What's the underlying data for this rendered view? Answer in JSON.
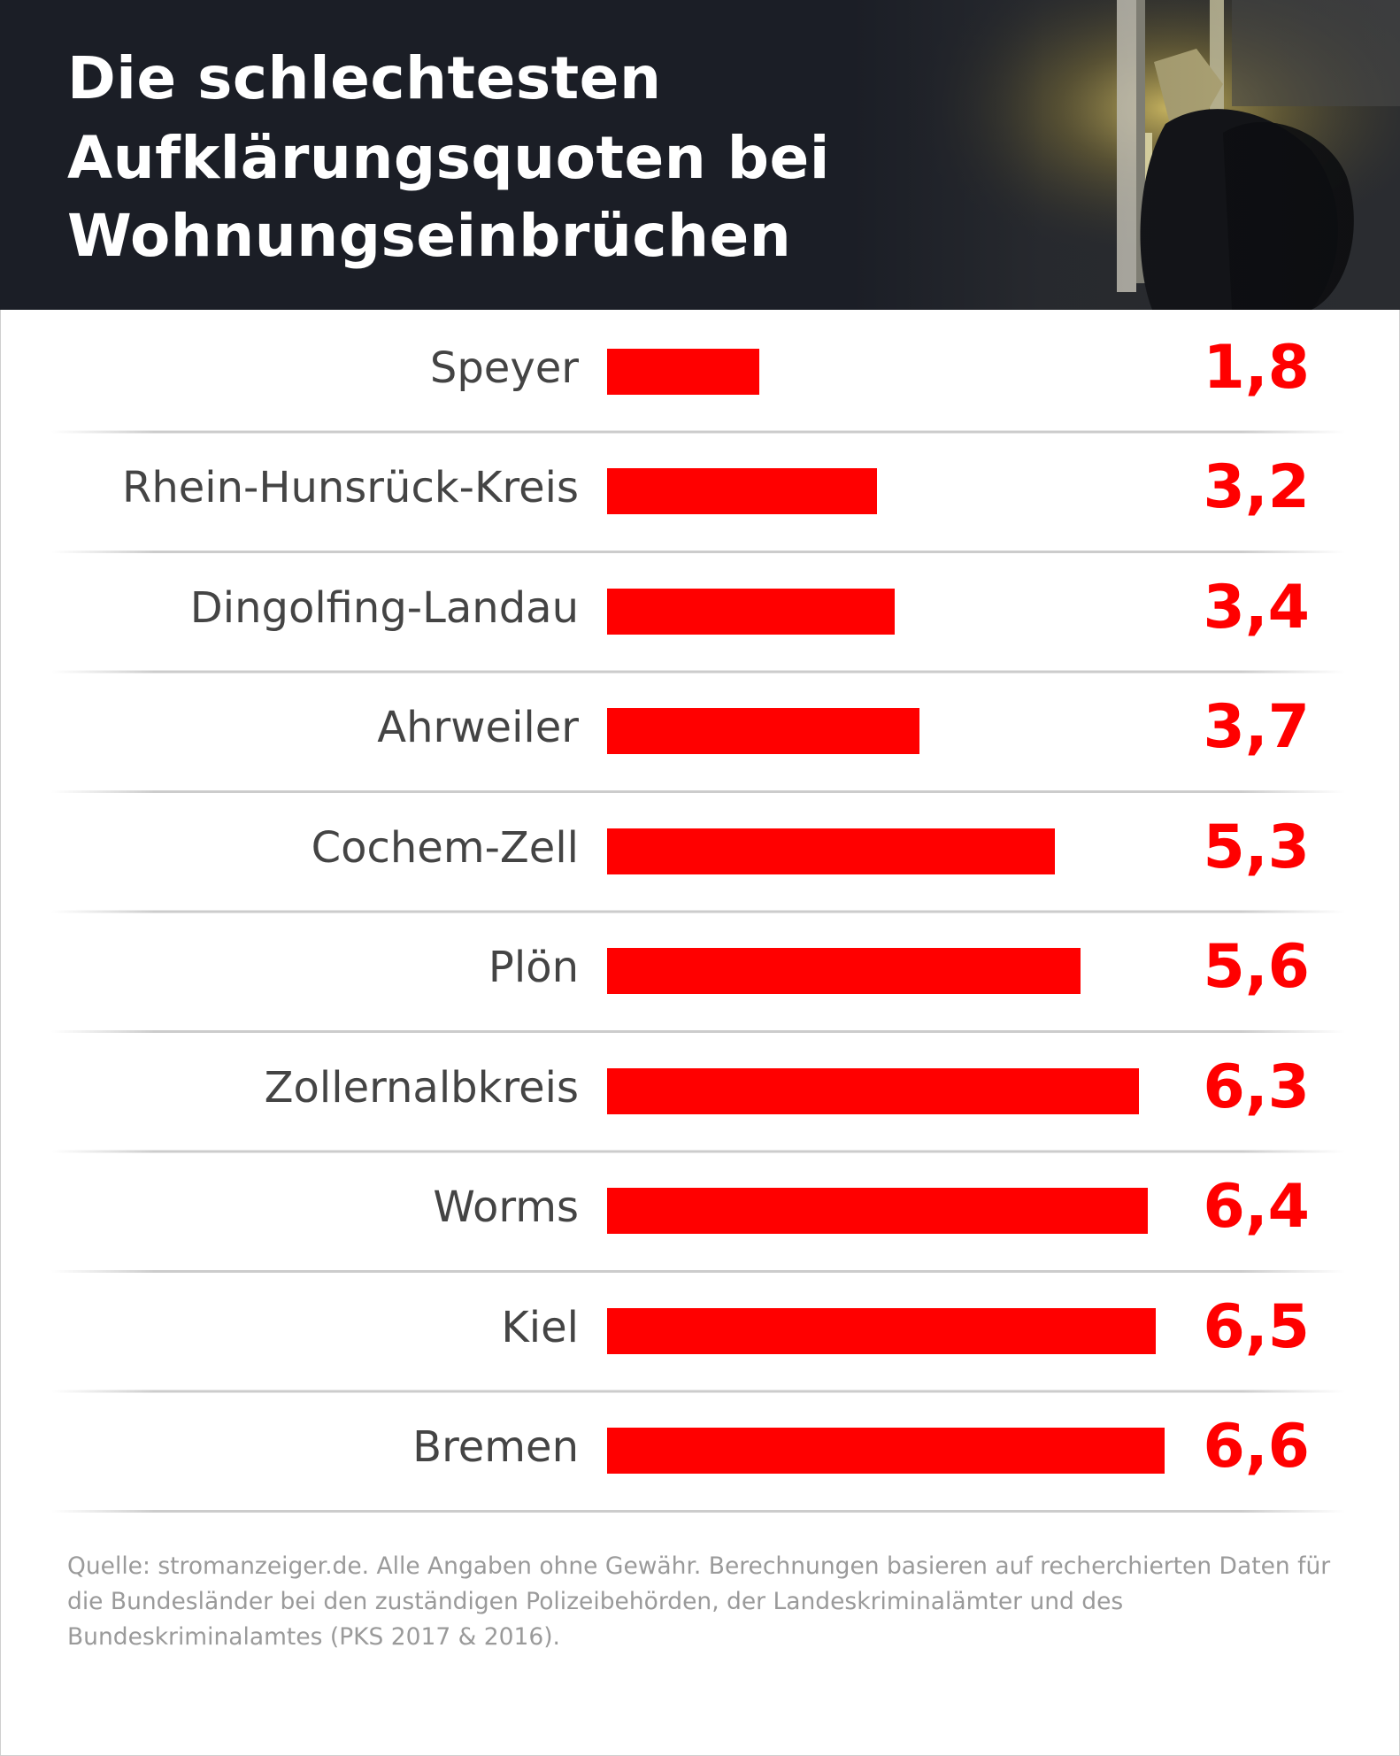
{
  "title_lines": [
    "Die schlechtesten",
    "Aufklärungsquoten bei",
    "Wohnungseinbrüchen"
  ],
  "source_text": "Quelle: stromanzeiger.de. Alle Angaben ohne Gewähr. Berechnungen basieren auf recherchierten Daten für die Bundesländer bei den zuständigen Polizeibehörden, der Landeskriminalämter und des Bundeskriminalamtes (PKS 2017 & 2016).",
  "colors": {
    "header": "#1b1e26",
    "bar": "#ff0000",
    "value": "#ff0000",
    "label": "#444444",
    "source": "#9a9a9a"
  },
  "icons": [
    "burglar-window-photo"
  ],
  "chart_data": {
    "type": "bar",
    "orientation": "horizontal",
    "title": "Die schlechtesten Aufklärungsquoten bei Wohnungseinbrüchen",
    "categories": [
      "Speyer",
      "Rhein-Hunsrück-Kreis",
      "Dingolfing-Landau",
      "Ahrweiler",
      "Cochem-Zell",
      "Plön",
      "Zollernalbkreis",
      "Worms",
      "Kiel",
      "Bremen"
    ],
    "values": [
      1.8,
      3.2,
      3.4,
      3.7,
      5.3,
      5.6,
      6.3,
      6.4,
      6.5,
      6.6
    ],
    "value_labels": [
      "1,8",
      "3,2",
      "3,4",
      "3,7",
      "5,3",
      "5,6",
      "6,3",
      "6,4",
      "6,5",
      "6,6"
    ],
    "xlabel": "",
    "ylabel": "",
    "xlim": [
      0,
      6.6
    ],
    "grid": false,
    "legend": "none"
  }
}
